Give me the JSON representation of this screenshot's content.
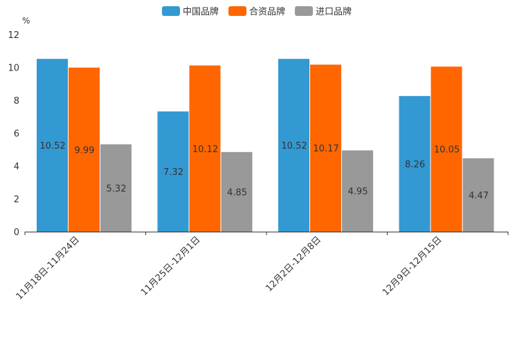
{
  "chart_data": {
    "type": "bar",
    "unit_label": "%",
    "categories": [
      "11月18日-11月24日",
      "11月25日-12月1日",
      "12月2日-12月8日",
      "12月9日-12月15日"
    ],
    "series": [
      {
        "name": "中国品牌",
        "color": "#3399d3",
        "values": [
          10.52,
          7.32,
          10.52,
          8.26
        ]
      },
      {
        "name": "合资品牌",
        "color": "#ff6600",
        "values": [
          9.99,
          10.12,
          10.17,
          10.05
        ]
      },
      {
        "name": "进口品牌",
        "color": "#999999",
        "values": [
          5.32,
          4.85,
          4.95,
          4.47
        ]
      }
    ],
    "ylim": [
      0,
      12
    ],
    "yticks": [
      0,
      2,
      4,
      6,
      8,
      10,
      12
    ],
    "legend_position": "top-center"
  }
}
